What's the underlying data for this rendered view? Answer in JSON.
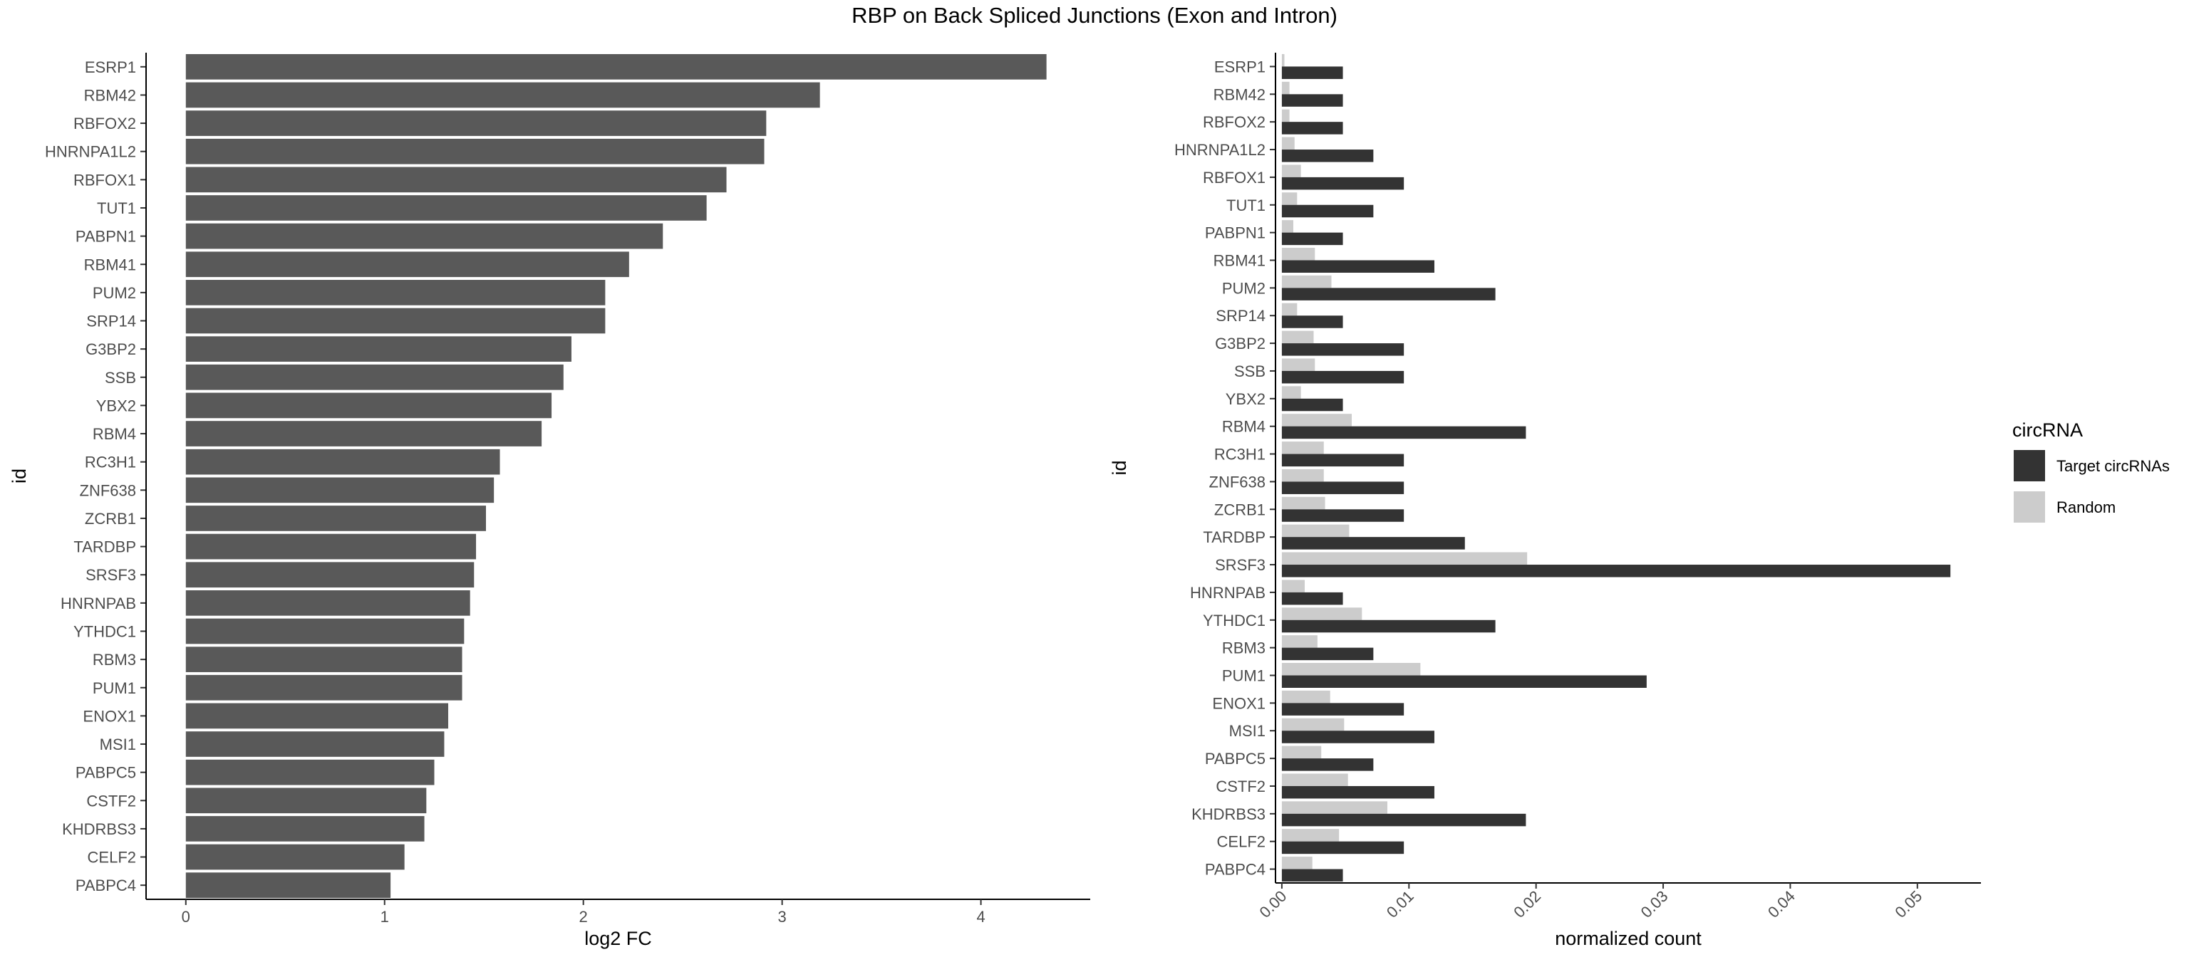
{
  "title": "RBP on Back Spliced Junctions (Exon and Intron)",
  "chart_data": [
    {
      "type": "bar",
      "orientation": "horizontal",
      "xlabel": "log2 FC",
      "ylabel": "id",
      "xlim": [
        -0.2,
        4.55
      ],
      "xticks": [
        0,
        1,
        2,
        3,
        4
      ],
      "color": "#595959",
      "grid": false,
      "categories": [
        "ESRP1",
        "RBM42",
        "RBFOX2",
        "HNRNPA1L2",
        "RBFOX1",
        "TUT1",
        "PABPN1",
        "RBM41",
        "PUM2",
        "SRP14",
        "G3BP2",
        "SSB",
        "YBX2",
        "RBM4",
        "RC3H1",
        "ZNF638",
        "ZCRB1",
        "TARDBP",
        "SRSF3",
        "HNRNPAB",
        "YTHDC1",
        "RBM3",
        "PUM1",
        "ENOX1",
        "MSI1",
        "PABPC5",
        "CSTF2",
        "KHDRBS3",
        "CELF2",
        "PABPC4"
      ],
      "values": [
        4.33,
        3.19,
        2.92,
        2.91,
        2.72,
        2.62,
        2.4,
        2.23,
        2.11,
        2.11,
        1.94,
        1.9,
        1.84,
        1.79,
        1.58,
        1.55,
        1.51,
        1.46,
        1.45,
        1.43,
        1.4,
        1.39,
        1.39,
        1.32,
        1.3,
        1.25,
        1.21,
        1.2,
        1.1,
        1.03
      ]
    },
    {
      "type": "bar",
      "orientation": "horizontal",
      "grouped": true,
      "xlabel": "normalized count",
      "ylabel": "id",
      "xlim": [
        -0.0005,
        0.055
      ],
      "xticks": [
        0.0,
        0.01,
        0.02,
        0.03,
        0.04,
        0.05
      ],
      "xtick_labels": [
        "0.00",
        "0.01",
        "0.02",
        "0.03",
        "0.04",
        "0.05"
      ],
      "xtick_rotation": -45,
      "grid": false,
      "legend": {
        "title": "circRNA",
        "position": "right"
      },
      "categories": [
        "ESRP1",
        "RBM42",
        "RBFOX2",
        "HNRNPA1L2",
        "RBFOX1",
        "TUT1",
        "PABPN1",
        "RBM41",
        "PUM2",
        "SRP14",
        "G3BP2",
        "SSB",
        "YBX2",
        "RBM4",
        "RC3H1",
        "ZNF638",
        "ZCRB1",
        "TARDBP",
        "SRSF3",
        "HNRNPAB",
        "YTHDC1",
        "RBM3",
        "PUM1",
        "ENOX1",
        "MSI1",
        "PABPC5",
        "CSTF2",
        "KHDRBS3",
        "CELF2",
        "PABPC4"
      ],
      "series": [
        {
          "name": "Target circRNAs",
          "color": "#333333",
          "values": [
            0.0048,
            0.0048,
            0.0048,
            0.0072,
            0.0096,
            0.0072,
            0.0048,
            0.012,
            0.0168,
            0.0048,
            0.0096,
            0.0096,
            0.0048,
            0.0192,
            0.0096,
            0.0096,
            0.0096,
            0.0144,
            0.0526,
            0.0048,
            0.0168,
            0.0072,
            0.0287,
            0.0096,
            0.012,
            0.0072,
            0.012,
            0.0192,
            0.0096,
            0.0048
          ]
        },
        {
          "name": "Random",
          "color": "#cccccc",
          "values": [
            0.0002,
            0.0006,
            0.0006,
            0.001,
            0.0015,
            0.0012,
            0.0009,
            0.0026,
            0.0039,
            0.0012,
            0.0025,
            0.0026,
            0.0015,
            0.0055,
            0.0033,
            0.0033,
            0.0034,
            0.0053,
            0.0193,
            0.0018,
            0.0063,
            0.0028,
            0.0109,
            0.0038,
            0.0049,
            0.0031,
            0.0052,
            0.0083,
            0.0045,
            0.0024
          ]
        }
      ]
    }
  ]
}
